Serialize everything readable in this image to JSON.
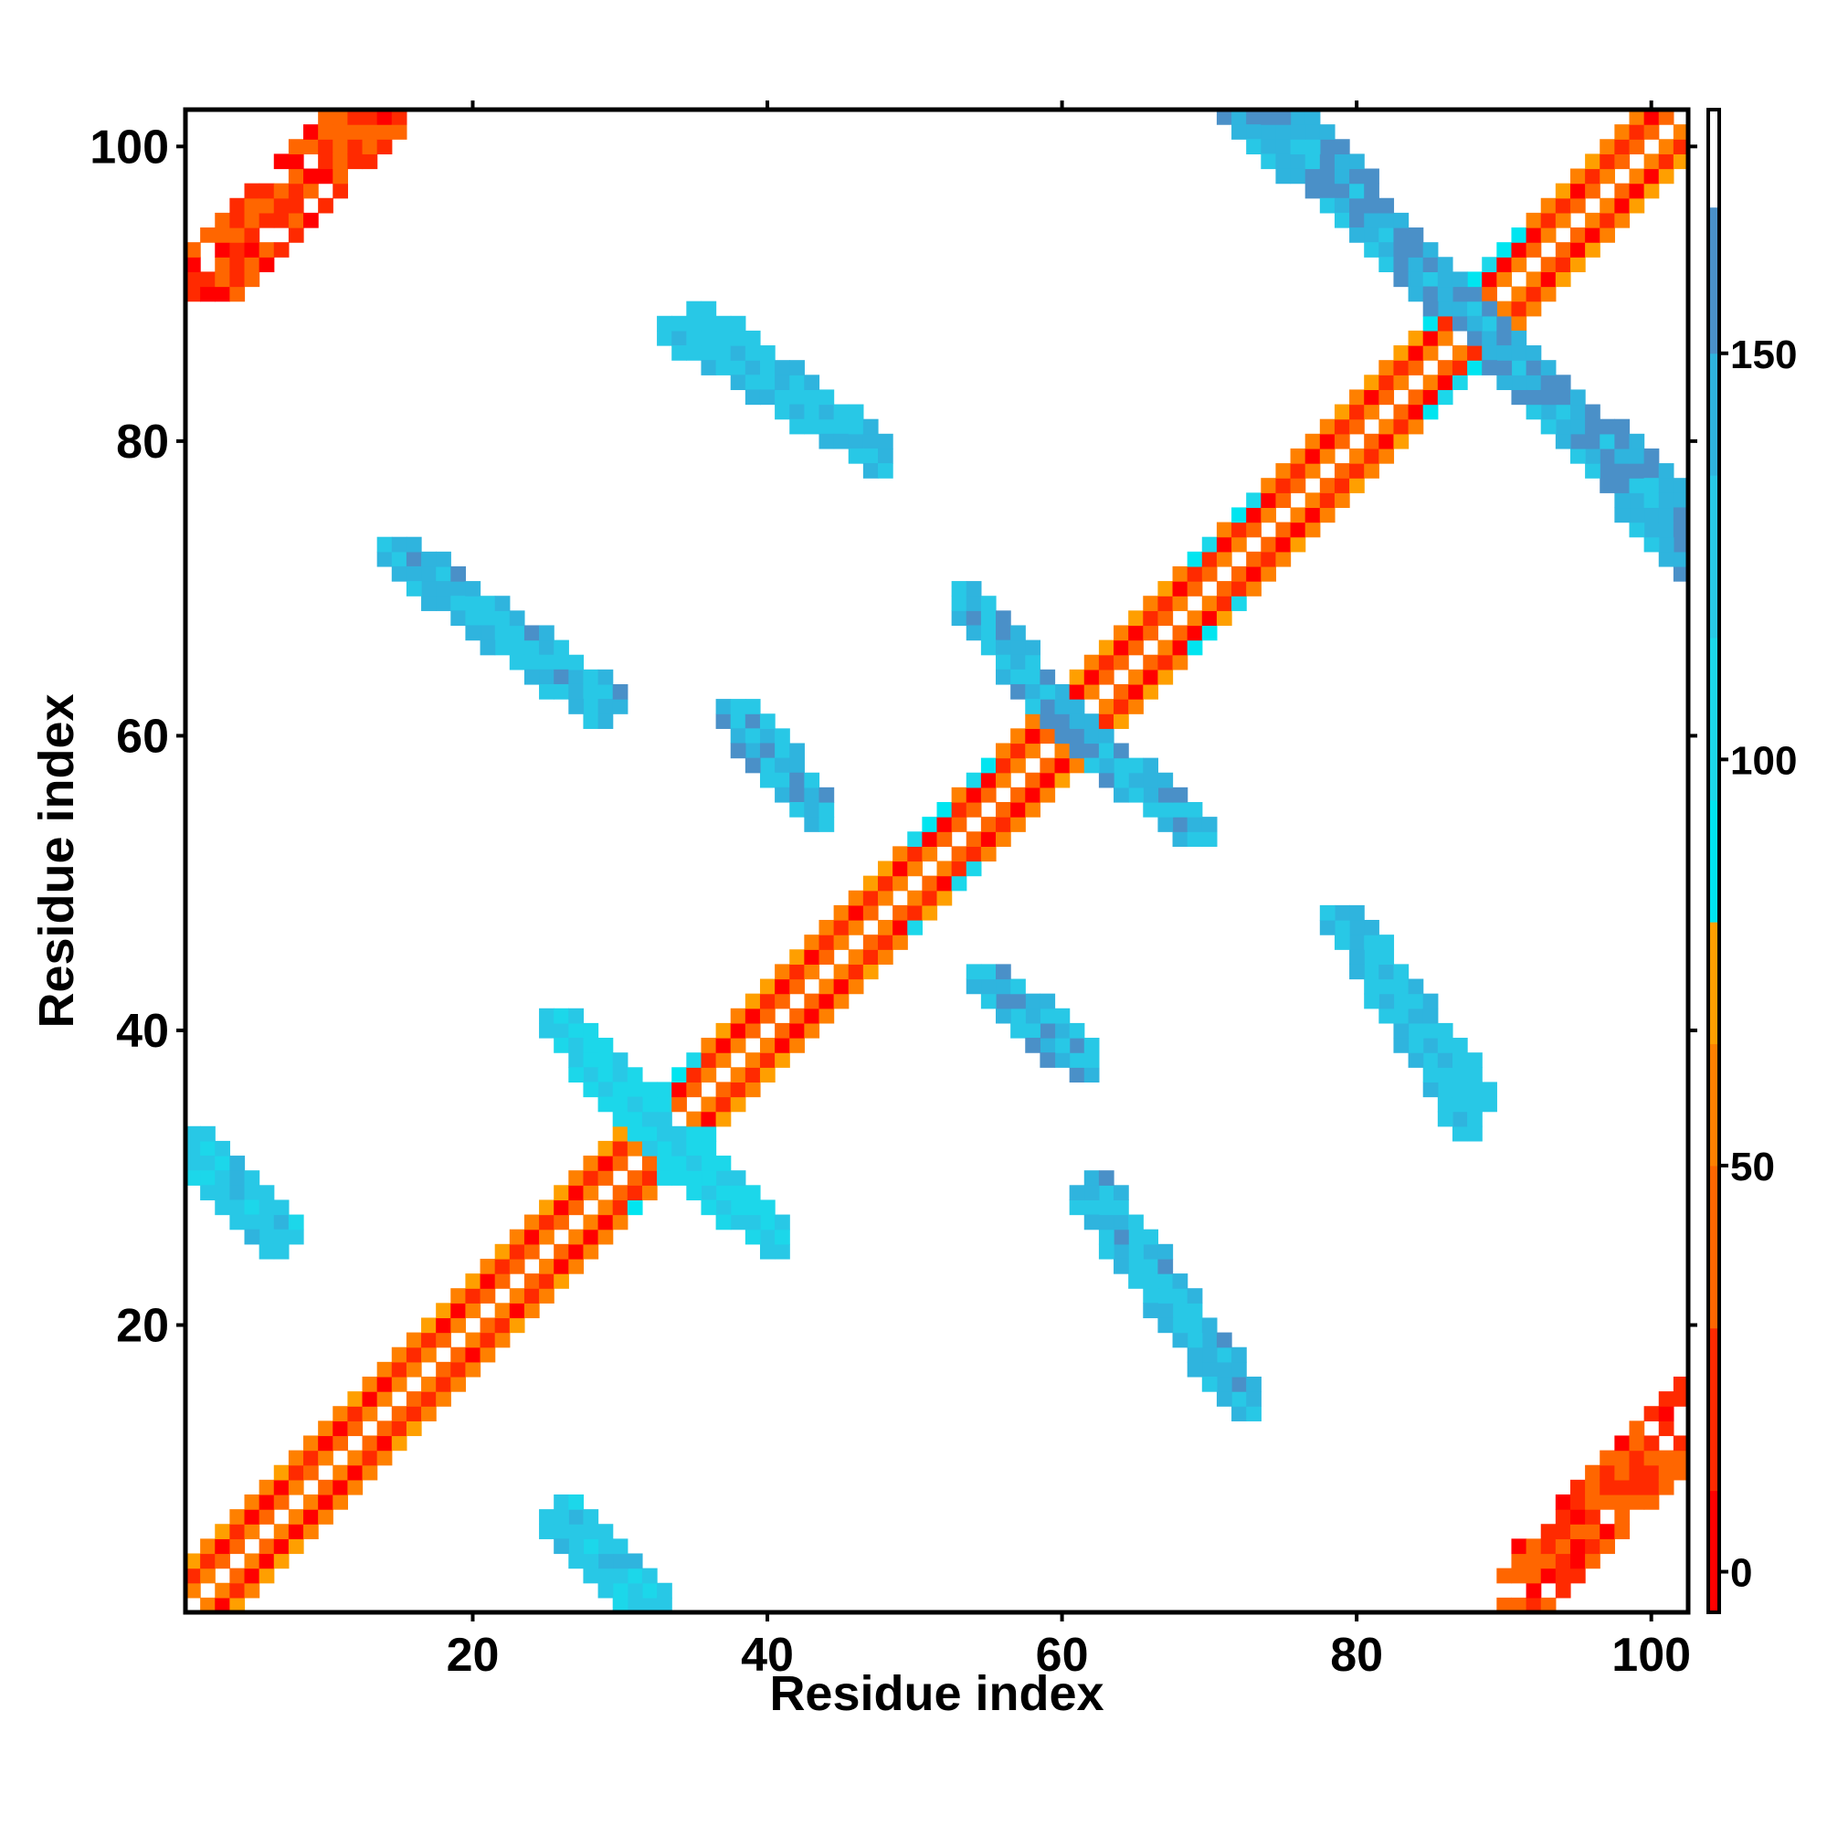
{
  "chart_data": {
    "type": "heatmap",
    "title": "",
    "xlabel": "Residue index",
    "ylabel": "Residue index",
    "xlim": [
      1,
      102
    ],
    "ylim": [
      1,
      102
    ],
    "x_ticks": [
      20,
      40,
      60,
      80,
      100
    ],
    "y_ticks": [
      20,
      40,
      60,
      80,
      100
    ],
    "cell_size_residues": 1,
    "colorbar": {
      "min": -5,
      "max": 180,
      "ticks": [
        0,
        50,
        100,
        150
      ],
      "bands": [
        {
          "from": -5,
          "to": 10,
          "color": "#ff0000"
        },
        {
          "from": 10,
          "to": 30,
          "color": "#ff2a00"
        },
        {
          "from": 30,
          "to": 50,
          "color": "#ff6600"
        },
        {
          "from": 50,
          "to": 65,
          "color": "#ff8000"
        },
        {
          "from": 65,
          "to": 80,
          "color": "#ff9f00"
        },
        {
          "from": 80,
          "to": 95,
          "color": "#00e5f0"
        },
        {
          "from": 95,
          "to": 115,
          "color": "#1cd7ea"
        },
        {
          "from": 115,
          "to": 135,
          "color": "#28c8e6"
        },
        {
          "from": 135,
          "to": 150,
          "color": "#2fb4de"
        },
        {
          "from": 150,
          "to": 168,
          "color": "#4a90c8"
        },
        {
          "from": 168,
          "to": 180,
          "color": "#ffffff"
        }
      ]
    },
    "pattern_description_values": {
      "main_diagonal_band": {
        "i_plus_j": "diagonal i=j",
        "half_width": 3,
        "value_range": [
          0,
          70
        ]
      },
      "antidiagonal_helix_pairs": [
        {
          "x_start": 72,
          "y_start": 102,
          "x_end": 102,
          "y_end": 75,
          "value": 155
        },
        {
          "x_start": 34,
          "y_start": 87,
          "x_end": 47,
          "y_end": 79,
          "value": 140
        },
        {
          "x_start": 15,
          "y_start": 72,
          "x_end": 29,
          "y_end": 62,
          "value": 145
        },
        {
          "x_start": 54,
          "y_start": 68,
          "x_end": 60,
          "y_end": 61,
          "value": 150
        },
        {
          "x_start": 61,
          "y_start": 60,
          "x_end": 69,
          "y_end": 53,
          "value": 150
        },
        {
          "x_start": 38,
          "y_start": 61,
          "x_end": 43,
          "y_end": 55,
          "value": 145
        },
        {
          "x_start": 79,
          "y_start": 47,
          "x_end": 88,
          "y_end": 35,
          "value": 140
        },
        {
          "x_start": 55,
          "y_start": 43,
          "x_end": 60,
          "y_end": 38,
          "value": 145
        },
        {
          "x_start": 62,
          "y_start": 28,
          "x_end": 72,
          "y_end": 15,
          "value": 145
        },
        {
          "x_start": 1,
          "y_start": 32,
          "x_end": 7,
          "y_end": 26,
          "value": 130
        },
        {
          "x_start": 26,
          "y_start": 6,
          "x_end": 31,
          "y_end": 1,
          "value": 130
        },
        {
          "x_start": 26,
          "y_start": 40,
          "x_end": 38,
          "y_end": 27,
          "value": 120
        }
      ],
      "corner_blocks": [
        {
          "x_range": [
            1,
            16
          ],
          "y_range": [
            90,
            102
          ],
          "value": 20
        },
        {
          "x_range": [
            90,
            102
          ],
          "y_range": [
            1,
            16
          ],
          "value": 20
        }
      ]
    }
  }
}
